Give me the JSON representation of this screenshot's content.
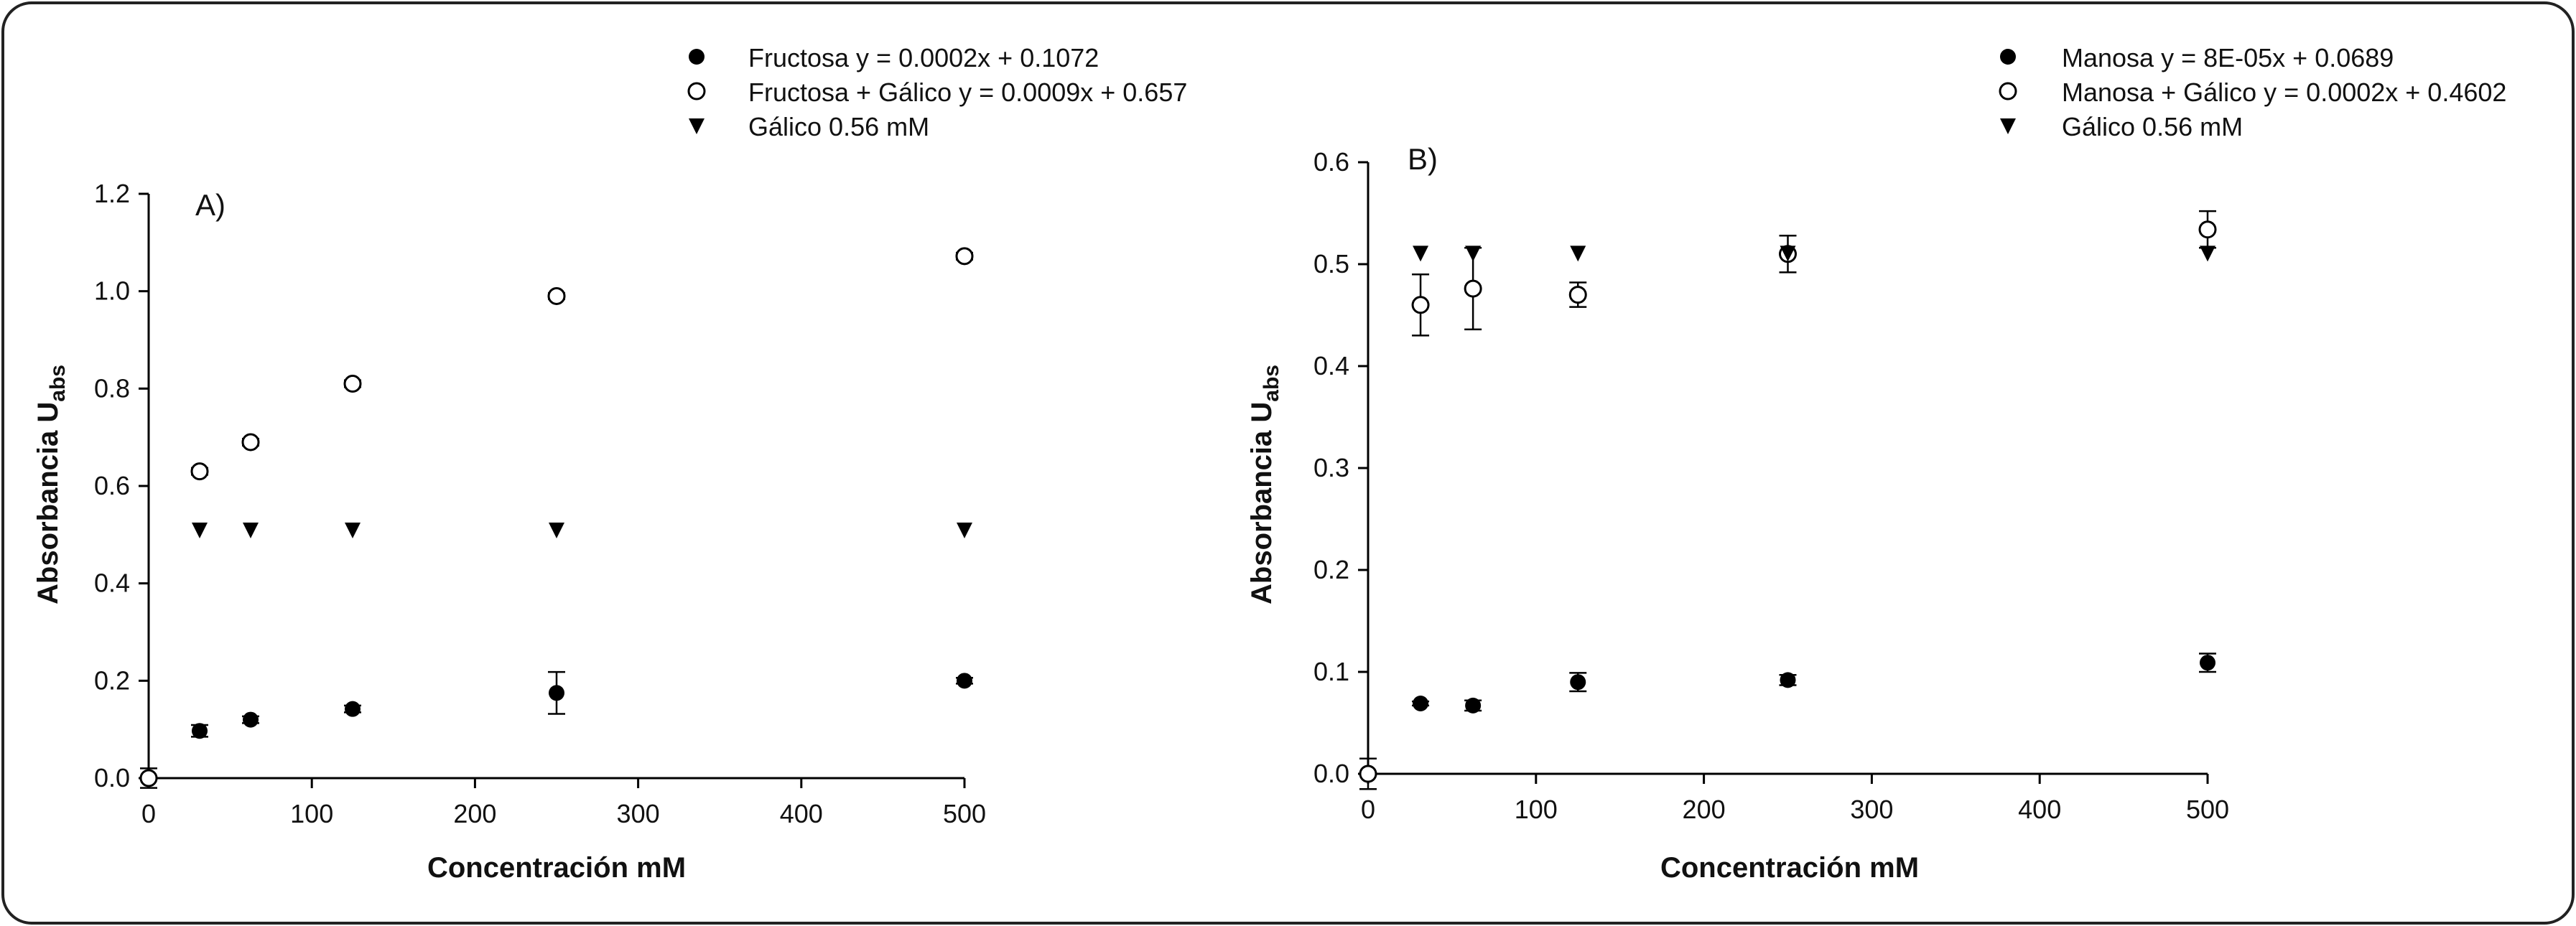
{
  "chart_data": [
    {
      "type": "scatter",
      "panel_label": "A)",
      "xlabel": "Concentración mM",
      "ylabel": "Absorbancia U",
      "ylabel_sub": "abs",
      "xlim": [
        0,
        500
      ],
      "ylim": [
        0,
        1.2
      ],
      "xticks": [
        0,
        100,
        200,
        300,
        400,
        500
      ],
      "yticks": [
        "0.0",
        "0.2",
        "0.4",
        "0.6",
        "0.8",
        "1.0",
        "1.2"
      ],
      "grid": false,
      "legend_placement": "top",
      "series": [
        {
          "name": "Fructosa y = 0.0002x + 0.1072",
          "marker": "filled-circle",
          "x": [
            31.25,
            62.5,
            125,
            250,
            500
          ],
          "y": [
            0.097,
            0.12,
            0.142,
            0.175,
            0.2
          ],
          "err": [
            0.012,
            0.007,
            0.007,
            0.043,
            0.006
          ]
        },
        {
          "name": "Fructosa + Gálico y = 0.0009x + 0.657",
          "marker": "open-circle",
          "x": [
            0,
            31.25,
            62.5,
            125,
            250,
            500
          ],
          "y": [
            0.0,
            0.63,
            0.69,
            0.81,
            0.99,
            1.072
          ],
          "err": [
            0.02,
            0.007,
            0.007,
            0.007,
            0.006,
            0.007
          ]
        },
        {
          "name": "Gálico 0.56 mM",
          "marker": "triangle-down",
          "x": [
            31.25,
            62.5,
            125,
            250,
            500
          ],
          "y": [
            0.51,
            0.51,
            0.51,
            0.51,
            0.51
          ],
          "err": [
            0,
            0,
            0,
            0,
            0
          ]
        }
      ]
    },
    {
      "type": "scatter",
      "panel_label": "B)",
      "xlabel": "Concentración mM",
      "ylabel": "Absorbancia U",
      "ylabel_sub": "abs",
      "xlim": [
        0,
        500
      ],
      "ylim": [
        0,
        0.6
      ],
      "xticks": [
        0,
        100,
        200,
        300,
        400,
        500
      ],
      "yticks": [
        "0.0",
        "0.1",
        "0.2",
        "0.3",
        "0.4",
        "0.5",
        "0.6"
      ],
      "grid": false,
      "legend_placement": "top-right",
      "series": [
        {
          "name": "Manosa y = 8E-05x + 0.0689",
          "marker": "filled-circle",
          "x": [
            31.25,
            62.5,
            125,
            250,
            500
          ],
          "y": [
            0.069,
            0.067,
            0.09,
            0.092,
            0.109
          ],
          "err": [
            0.002,
            0.005,
            0.009,
            0.005,
            0.009
          ]
        },
        {
          "name": "Manosa + Gálico y = 0.0002x + 0.4602",
          "marker": "open-circle",
          "x": [
            0,
            31.25,
            62.5,
            125,
            250,
            500
          ],
          "y": [
            0.0,
            0.46,
            0.476,
            0.47,
            0.51,
            0.534
          ],
          "err": [
            0.015,
            0.03,
            0.04,
            0.012,
            0.018,
            0.018
          ]
        },
        {
          "name": "Gálico 0.56 mM",
          "marker": "triangle-down",
          "x": [
            31.25,
            62.5,
            125,
            250,
            500
          ],
          "y": [
            0.511,
            0.511,
            0.511,
            0.511,
            0.511
          ],
          "err": [
            0,
            0,
            0,
            0,
            0
          ]
        }
      ]
    }
  ]
}
